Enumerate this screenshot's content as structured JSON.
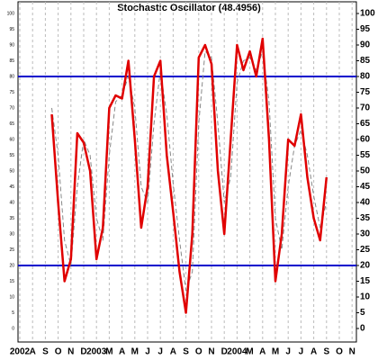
{
  "chart_data": {
    "type": "line",
    "title": "Stochastic Oscillator (48.4956)",
    "categories": [
      "2002",
      null,
      "A",
      null,
      "S",
      null,
      "O",
      null,
      "N",
      null,
      "D",
      null,
      "2003",
      null,
      "M",
      null,
      "A",
      null,
      "M",
      null,
      "J",
      null,
      "J",
      null,
      "A",
      null,
      "S",
      null,
      "O",
      null,
      "N",
      null,
      "D",
      null,
      "2004",
      null,
      "M",
      null,
      "A",
      null,
      "M",
      null,
      "J",
      null,
      "J",
      null,
      "A",
      null,
      "S",
      null,
      "O",
      null,
      "N",
      null
    ],
    "series": [
      {
        "color": "#e00000",
        "dashed": false,
        "values": [
          null,
          null,
          null,
          null,
          null,
          68,
          40,
          15,
          22,
          62,
          59,
          50,
          22,
          32,
          70,
          74,
          73,
          85,
          60,
          32,
          45,
          80,
          85,
          55,
          37,
          18,
          5,
          30,
          86,
          90,
          84,
          50,
          30,
          60,
          90,
          82,
          88,
          80,
          92,
          60,
          15,
          30,
          60,
          58,
          68,
          48,
          35,
          28,
          48,
          null,
          null,
          null,
          null,
          null
        ]
      },
      {
        "color": "#888888",
        "dashed": true,
        "values": [
          null,
          null,
          null,
          null,
          null,
          70,
          55,
          28,
          20,
          45,
          60,
          55,
          35,
          28,
          55,
          72,
          74,
          80,
          70,
          45,
          40,
          65,
          82,
          68,
          46,
          28,
          12,
          18,
          65,
          88,
          86,
          65,
          40,
          48,
          78,
          85,
          86,
          82,
          88,
          72,
          35,
          25,
          45,
          58,
          63,
          55,
          42,
          32,
          40,
          null,
          null,
          null,
          null,
          null
        ]
      }
    ],
    "hlines": [
      80,
      20
    ],
    "hline_color": "#0000cc",
    "ylim": [
      0,
      100
    ],
    "yticks": [
      0,
      5,
      10,
      15,
      20,
      25,
      30,
      35,
      40,
      45,
      50,
      55,
      60,
      65,
      70,
      75,
      80,
      85,
      90,
      95,
      100
    ],
    "grid": true
  }
}
